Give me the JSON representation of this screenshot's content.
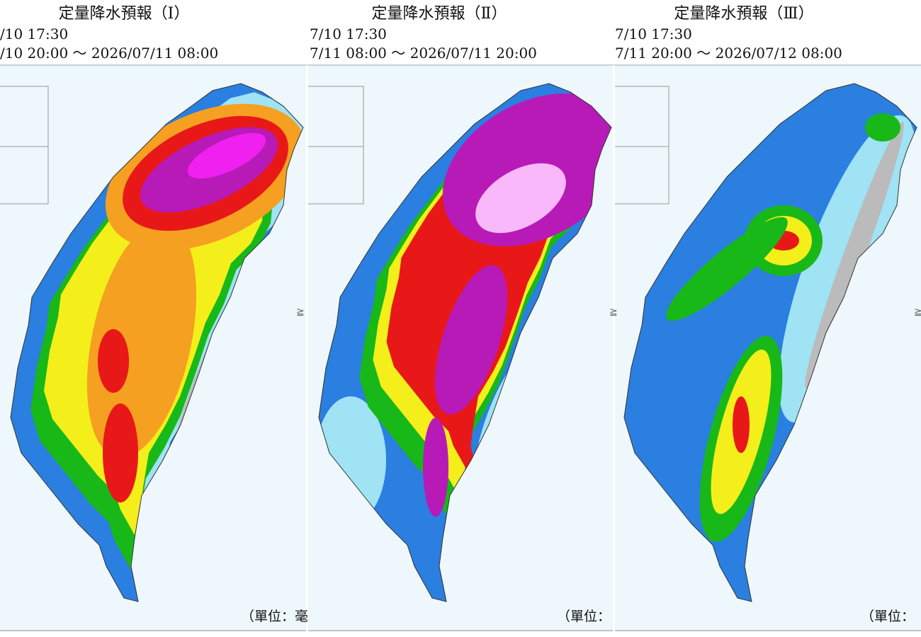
{
  "panels": [
    {
      "title": "定量降水預報（Ⅰ）",
      "issued": "/10 17:30",
      "period": "/10 20:00 ～ 2026/07/11 08:00",
      "unit": "（單位：毫",
      "edge_mark": "≧"
    },
    {
      "title": "定量降水預報（Ⅱ）",
      "issued": "7/10 17:30",
      "period": "7/11 08:00 ～ 2026/07/11 20:00",
      "unit": "（單位：",
      "edge_mark": "≧"
    },
    {
      "title": "定量降水預報（Ⅲ）",
      "issued": "7/10 17:30",
      "period": "7/11 20:00 ～ 2026/07/12 08:00",
      "unit": "（單位：",
      "edge_mark": "≧"
    }
  ]
}
